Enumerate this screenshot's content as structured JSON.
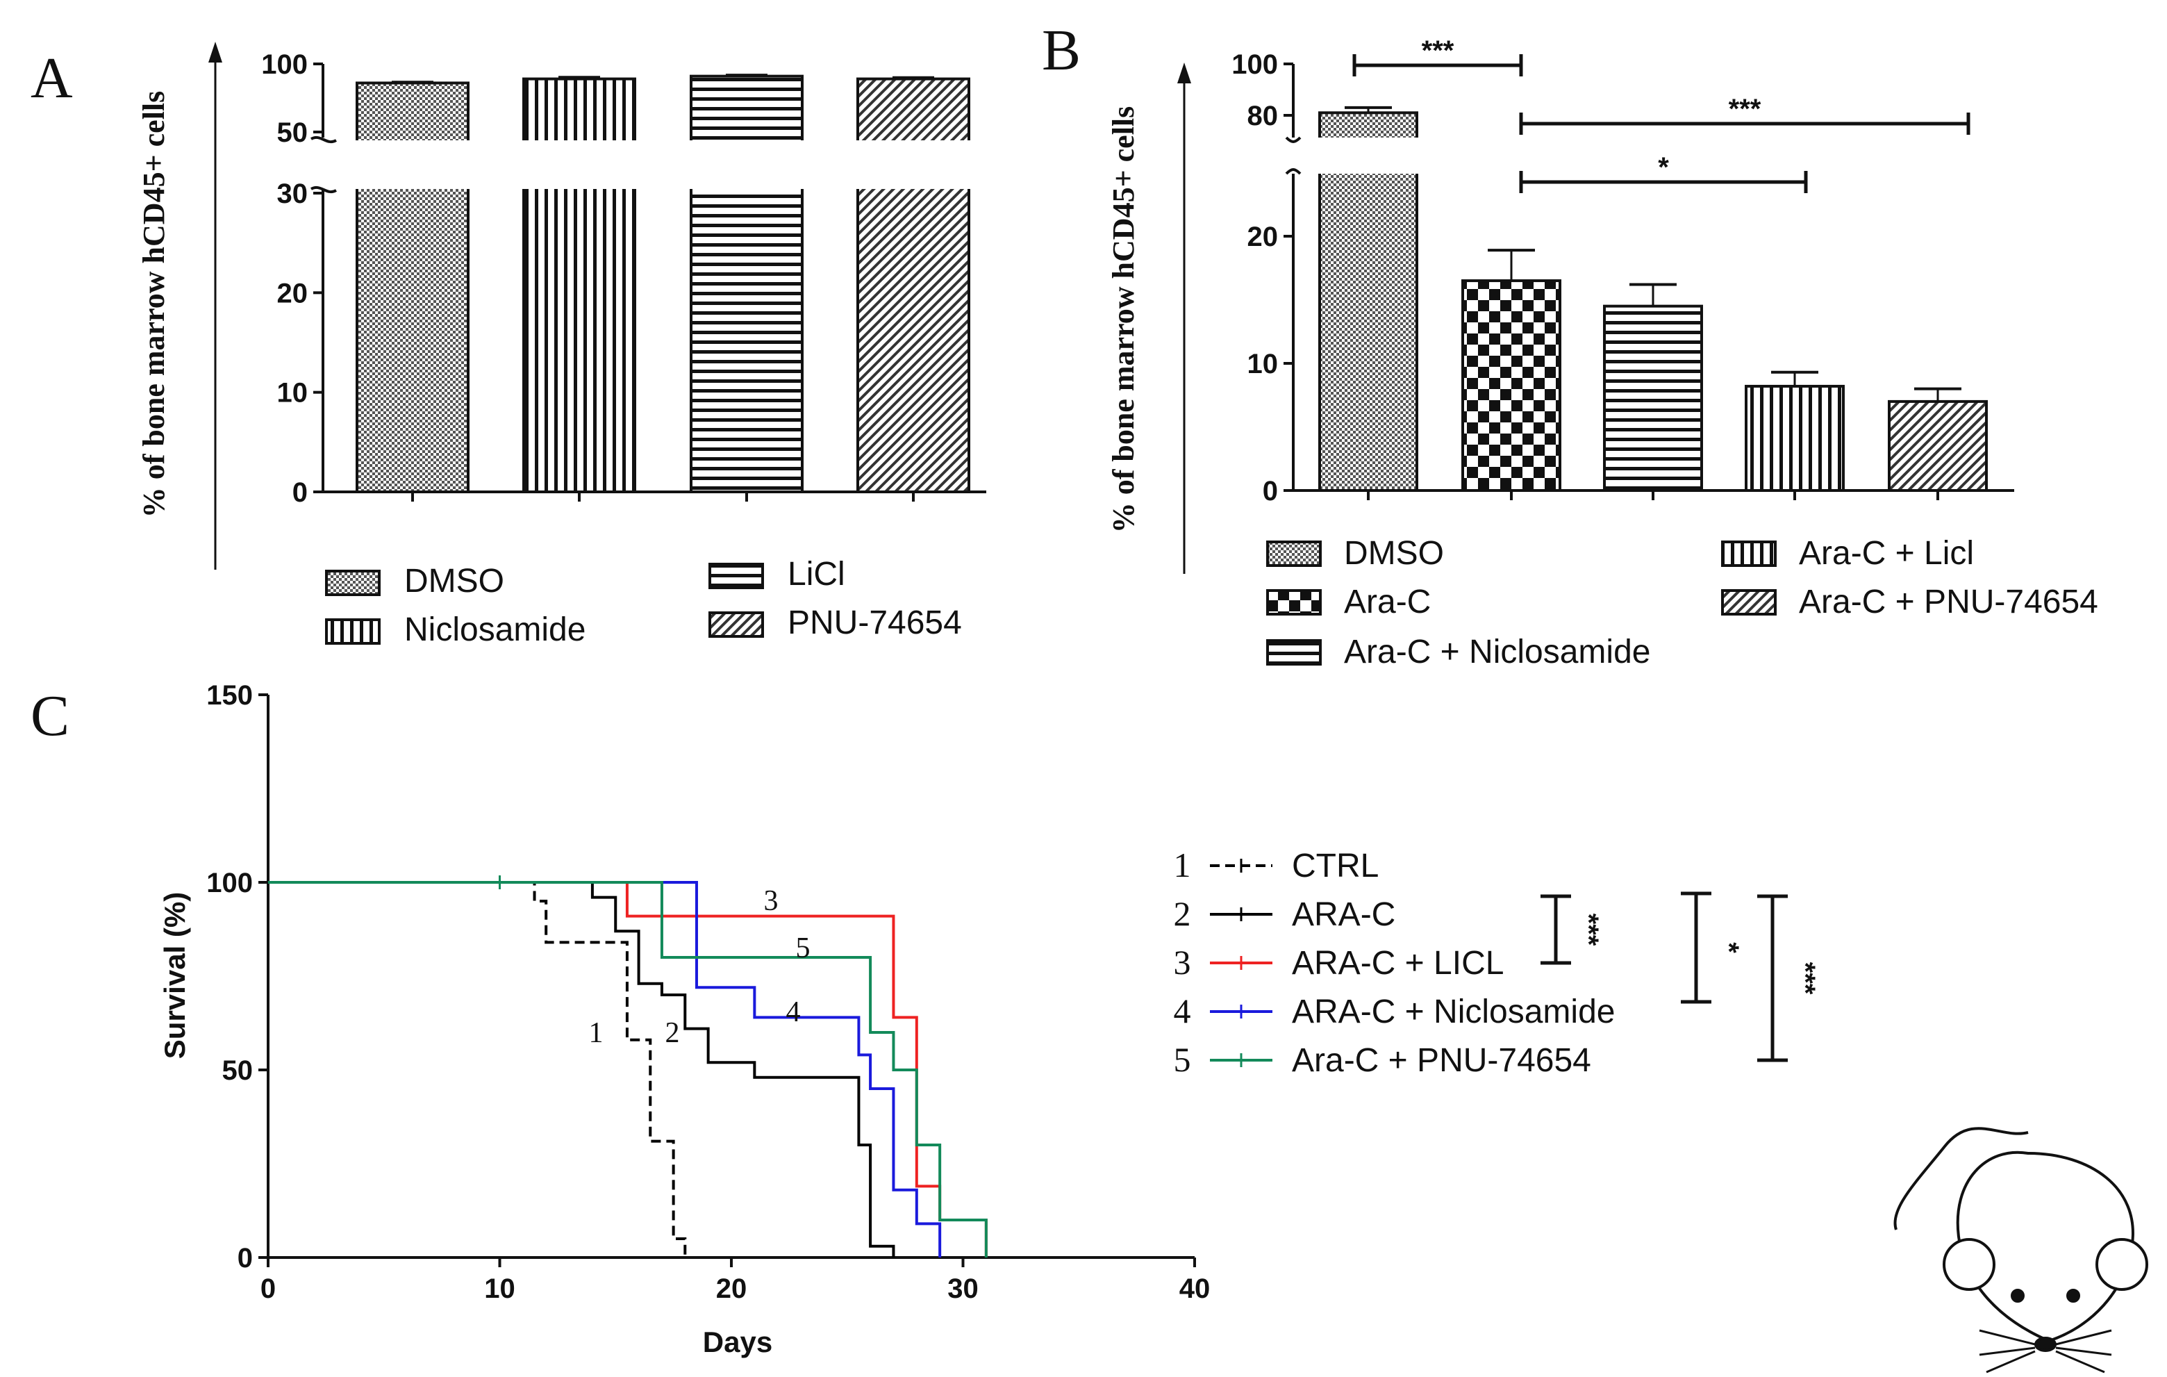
{
  "chart_data": [
    {
      "panel": "A",
      "type": "bar",
      "title": "",
      "ylabel": "% of bone marrow hCD45+ cells",
      "ylim": [
        0,
        100
      ],
      "y_axis_break": [
        30,
        50
      ],
      "yticks": [
        0,
        10,
        20,
        30,
        50,
        100
      ],
      "categories": [
        "DMSO",
        "Niclosamide",
        "LiCl",
        "PNU-74654"
      ],
      "values": [
        86,
        89,
        91,
        89
      ],
      "errors": [
        0.6,
        1.2,
        0.8,
        0.9
      ],
      "legend": [
        "DMSO",
        "Niclosamide",
        "LiCl",
        "PNU-74654"
      ]
    },
    {
      "panel": "B",
      "type": "bar",
      "title": "",
      "ylabel": "% of bone marrow hCD45+ cells",
      "ylim": [
        0,
        100
      ],
      "y_axis_break": [
        25,
        80
      ],
      "yticks": [
        0,
        10,
        20,
        80,
        100
      ],
      "categories": [
        "DMSO",
        "Ara-C",
        "Ara-C + Niclosamide",
        "Ara-C + Licl",
        "Ara-C + PNU-74654"
      ],
      "values": [
        81,
        16.5,
        14.5,
        8.2,
        7.0
      ],
      "errors": [
        2.0,
        2.4,
        1.7,
        1.1,
        1.0
      ],
      "legend": [
        "DMSO",
        "Ara-C",
        "Ara-C + Niclosamide",
        "Ara-C + Licl",
        "Ara-C + PNU-74654"
      ],
      "significance": [
        {
          "from": "DMSO",
          "to": "Ara-C",
          "label": "***"
        },
        {
          "from": "Ara-C",
          "to": "Ara-C + PNU-74654",
          "label": "***"
        },
        {
          "from": "Ara-C",
          "to": "Ara-C + Licl",
          "label": "*"
        }
      ]
    },
    {
      "panel": "C",
      "type": "line",
      "title": "",
      "xlabel": "Days",
      "ylabel": "Survival (%)",
      "xlim": [
        0,
        40
      ],
      "ylim": [
        0,
        150
      ],
      "xticks": [
        0,
        10,
        20,
        30,
        40
      ],
      "yticks": [
        0,
        50,
        100,
        150
      ],
      "series": [
        {
          "id": "1",
          "name": "CTRL",
          "color": "#000000",
          "dashed": true,
          "x": [
            0,
            11,
            11.5,
            12,
            15,
            15.5,
            16,
            16.5,
            17,
            17.5,
            18
          ],
          "y": [
            100,
            100,
            95,
            84,
            84,
            58,
            58,
            31,
            31,
            5,
            0
          ]
        },
        {
          "id": "2",
          "name": "ARA-C",
          "color": "#000000",
          "dashed": false,
          "x": [
            0,
            13,
            14,
            15,
            16,
            17,
            18,
            19,
            21,
            25,
            25.5,
            26,
            27
          ],
          "y": [
            100,
            100,
            96,
            87,
            73,
            70,
            61,
            52,
            48,
            48,
            30,
            3,
            0
          ]
        },
        {
          "id": "3",
          "name": "ARA-C + LICL",
          "color": "#ee2222",
          "dashed": false,
          "x": [
            0,
            15,
            15.5,
            26,
            27,
            28,
            29,
            31
          ],
          "y": [
            100,
            100,
            91,
            91,
            64,
            19,
            10,
            0
          ]
        },
        {
          "id": "4",
          "name": "ARA-C + Niclosamide",
          "color": "#1a1adc",
          "dashed": false,
          "x": [
            0,
            18,
            18.5,
            21,
            25.5,
            26,
            27,
            28,
            29
          ],
          "y": [
            100,
            100,
            72,
            64,
            54,
            45,
            18,
            9,
            0
          ]
        },
        {
          "id": "5",
          "name": "Ara-C + PNU-74654",
          "color": "#138a5a",
          "dashed": false,
          "x": [
            0,
            17,
            26,
            27,
            28,
            29,
            31
          ],
          "y": [
            100,
            80,
            60,
            50,
            30,
            10,
            0
          ]
        }
      ],
      "curve_labels": [
        "1",
        "2",
        "3",
        "4",
        "5"
      ],
      "significance": [
        {
          "compare": [
            "2",
            "3"
          ],
          "label": "***"
        },
        {
          "compare": [
            "2",
            "4"
          ],
          "label": "*"
        },
        {
          "compare": [
            "2",
            "5"
          ],
          "label": "***"
        }
      ]
    }
  ],
  "panel_labels": {
    "a": "A",
    "b": "B",
    "c": "C"
  },
  "icons": {
    "mouse": "mouse-icon"
  }
}
